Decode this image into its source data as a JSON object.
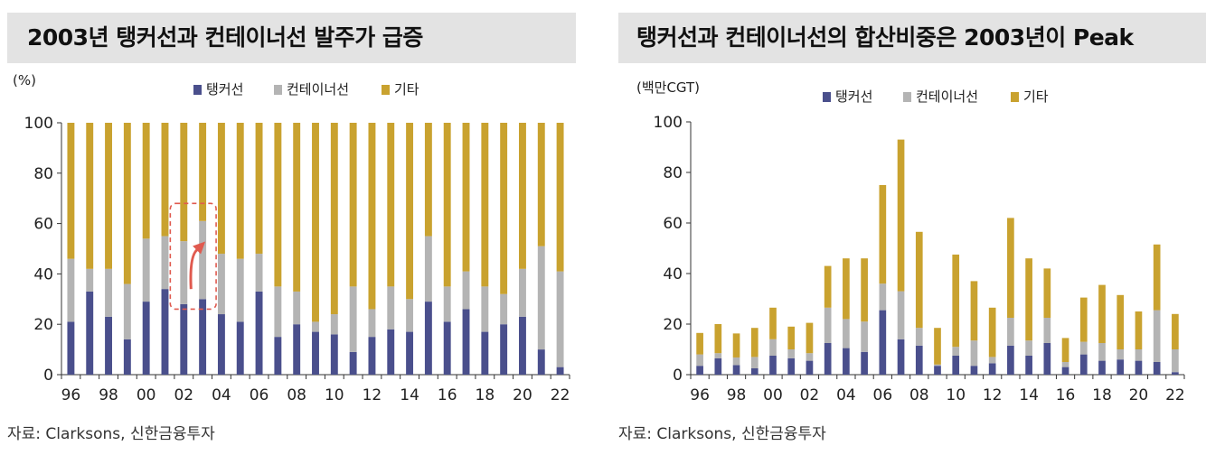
{
  "left_panel": {
    "title": "2003년 탱커선과 컨테이너선 발주가 급증",
    "source": "자료: Clarksons, 신한금융투자"
  },
  "right_panel": {
    "title": "탱커선과 컨테이너선의 합산비중은 2003년이 Peak",
    "source": "자료: Clarksons, 신한금융투자"
  },
  "colors": {
    "tanker": "#4a4f8c",
    "container": "#b4b4b4",
    "other": "#c9a22f",
    "annotation": "#e05a4f"
  },
  "chart_data": [
    {
      "type": "bar",
      "stacked": true,
      "unit_label": "(%)",
      "x": [
        1996,
        1997,
        1998,
        1999,
        2000,
        2001,
        2002,
        2003,
        2004,
        2005,
        2006,
        2007,
        2008,
        2009,
        2010,
        2011,
        2012,
        2013,
        2014,
        2015,
        2016,
        2017,
        2018,
        2019,
        2020,
        2021,
        2022
      ],
      "xtick_labels": [
        "96",
        "98",
        "00",
        "02",
        "04",
        "06",
        "08",
        "10",
        "12",
        "14",
        "16",
        "18",
        "20",
        "22"
      ],
      "ylim": [
        0,
        100
      ],
      "yticks": [
        0,
        20,
        40,
        60,
        80,
        100
      ],
      "legend_position": "top",
      "grid": false,
      "series": [
        {
          "name": "탱커선",
          "values": [
            21,
            33,
            23,
            14,
            29,
            34,
            28,
            30,
            24,
            21,
            33,
            15,
            20,
            17,
            16,
            9,
            15,
            18,
            17,
            29,
            21,
            26,
            17,
            20,
            23,
            10,
            3
          ]
        },
        {
          "name": "컨테이너선",
          "values": [
            25,
            9,
            19,
            22,
            25,
            21,
            25,
            31,
            24,
            25,
            15,
            20,
            13,
            4,
            8,
            26,
            11,
            17,
            13,
            26,
            14,
            15,
            18,
            12,
            19,
            41,
            38
          ]
        },
        {
          "name": "기타",
          "values": [
            54,
            58,
            58,
            64,
            46,
            45,
            47,
            39,
            52,
            54,
            52,
            65,
            67,
            79,
            76,
            65,
            74,
            65,
            70,
            45,
            65,
            59,
            65,
            68,
            58,
            49,
            59
          ]
        }
      ],
      "annotation": {
        "highlight_years": [
          2002,
          2003
        ],
        "type": "dashed-box-with-arrow"
      }
    },
    {
      "type": "bar",
      "stacked": true,
      "unit_label": "(백만CGT)",
      "x": [
        1996,
        1997,
        1998,
        1999,
        2000,
        2001,
        2002,
        2003,
        2004,
        2005,
        2006,
        2007,
        2008,
        2009,
        2010,
        2011,
        2012,
        2013,
        2014,
        2015,
        2016,
        2017,
        2018,
        2019,
        2020,
        2021,
        2022
      ],
      "xtick_labels": [
        "96",
        "98",
        "00",
        "02",
        "04",
        "06",
        "08",
        "10",
        "12",
        "14",
        "16",
        "18",
        "20",
        "22"
      ],
      "ylim": [
        0,
        100
      ],
      "yticks": [
        0,
        20,
        40,
        60,
        80,
        100
      ],
      "legend_position": "top",
      "grid": false,
      "series": [
        {
          "name": "탱커선",
          "values": [
            3.5,
            6.5,
            3.8,
            2.5,
            7.5,
            6.5,
            5.5,
            12.5,
            10.5,
            9,
            25.5,
            14,
            11.5,
            3.5,
            7.5,
            3.5,
            4.5,
            11.5,
            7.5,
            12.5,
            3,
            8,
            5.5,
            6,
            5.5,
            5,
            1
          ]
        },
        {
          "name": "컨테이너선",
          "values": [
            4.5,
            2,
            3,
            4.5,
            6.5,
            3.5,
            3,
            14,
            11.5,
            12,
            10.5,
            19,
            7,
            0.5,
            3.5,
            10,
            2.5,
            11,
            6,
            10,
            2,
            5,
            7,
            4,
            4.5,
            20.5,
            9
          ]
        },
        {
          "name": "기타",
          "values": [
            8.5,
            11.5,
            9.5,
            11.5,
            12.5,
            9,
            12,
            16.5,
            24,
            25,
            39,
            60,
            38,
            14.5,
            36.5,
            23.5,
            19.5,
            39.5,
            32.5,
            19.5,
            9.5,
            17.5,
            23,
            21.5,
            15,
            26,
            14
          ]
        }
      ]
    }
  ]
}
